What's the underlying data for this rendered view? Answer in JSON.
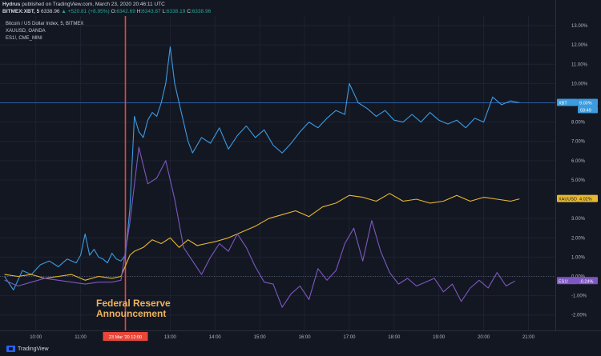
{
  "header": {
    "publisher": "Hydrus",
    "published_text": "published on TradingView.com, March 23, 2020 20:46:11 UTC",
    "symbol": "BITMEX:XBT, 5",
    "last": "6338.96",
    "change": "▲ +520.81 (+8.95%)",
    "o_label": "O:",
    "o_value": "6342.69",
    "h_label": "H:",
    "h_value": "6343.87",
    "l_label": "L:",
    "l_value": "6338.19",
    "c_label": "C:",
    "c_value": "6338.96"
  },
  "legend": [
    "Bitcoin / US Dollar Index, 5, BITMEX",
    "XAUUSD, OANDA",
    "ES1!, CME_MINI"
  ],
  "annotation": {
    "line1": "Federal Reserve",
    "line2": "Announcement",
    "marker_label": "23 Mar '20   12:00"
  },
  "footer": {
    "brand": "TradingView"
  },
  "colors": {
    "background": "#131722",
    "xbt": "#3d9be0",
    "xauusd": "#e8b830",
    "es1": "#7e57c2",
    "event": "#e8473b",
    "grid": "#1e2331"
  },
  "chart_data": {
    "type": "line",
    "x_unit": "hours",
    "xlim": [
      9.2,
      21.6
    ],
    "ylim": [
      -2.8,
      13.5
    ],
    "x_ticks": [
      {
        "x": 10,
        "label": "10:00"
      },
      {
        "x": 11,
        "label": "11:00"
      },
      {
        "x": 13,
        "label": "13:00"
      },
      {
        "x": 14,
        "label": "14:00"
      },
      {
        "x": 15,
        "label": "15:00"
      },
      {
        "x": 16,
        "label": "16:00"
      },
      {
        "x": 17,
        "label": "17:00"
      },
      {
        "x": 18,
        "label": "18:00"
      },
      {
        "x": 19,
        "label": "19:00"
      },
      {
        "x": 20,
        "label": "20:00"
      },
      {
        "x": 21,
        "label": "21:00"
      }
    ],
    "y_ticks": [
      {
        "y": 13,
        "label": "13.00%"
      },
      {
        "y": 12,
        "label": "12.00%"
      },
      {
        "y": 11,
        "label": "11.00%"
      },
      {
        "y": 10,
        "label": "10.00%"
      },
      {
        "y": 8,
        "label": "8.00%"
      },
      {
        "y": 7,
        "label": "7.00%"
      },
      {
        "y": 6,
        "label": "6.00%"
      },
      {
        "y": 5,
        "label": "5.00%"
      },
      {
        "y": 3,
        "label": "3.00%"
      },
      {
        "y": 2,
        "label": "2.00%"
      },
      {
        "y": 1,
        "label": "1.00%"
      },
      {
        "y": 0,
        "label": "0.00%"
      },
      {
        "y": -1,
        "label": "-1.00%"
      },
      {
        "y": -2,
        "label": "-2.00%"
      }
    ],
    "event_x": 12.0,
    "series": [
      {
        "name": "XBT",
        "color": "#3d9be0",
        "end_label": "XBT",
        "end_value": "9.00%",
        "countdown": "03:49",
        "last": 9.0,
        "x": [
          9.3,
          9.5,
          9.7,
          9.9,
          10.1,
          10.3,
          10.5,
          10.7,
          10.9,
          11.0,
          11.1,
          11.2,
          11.3,
          11.4,
          11.5,
          11.6,
          11.7,
          11.8,
          11.9,
          12.0,
          12.1,
          12.2,
          12.3,
          12.4,
          12.5,
          12.6,
          12.7,
          12.8,
          12.9,
          13.0,
          13.1,
          13.2,
          13.3,
          13.4,
          13.5,
          13.7,
          13.9,
          14.1,
          14.3,
          14.5,
          14.7,
          14.9,
          15.1,
          15.3,
          15.5,
          15.7,
          15.9,
          16.1,
          16.3,
          16.5,
          16.7,
          16.9,
          17.0,
          17.2,
          17.4,
          17.6,
          17.8,
          18.0,
          18.2,
          18.4,
          18.6,
          18.8,
          19.0,
          19.2,
          19.4,
          19.6,
          19.8,
          20.0,
          20.2,
          20.4,
          20.6,
          20.8
        ],
        "y": [
          0.0,
          -0.7,
          0.3,
          0.1,
          0.6,
          0.8,
          0.5,
          0.9,
          0.7,
          1.1,
          2.2,
          1.1,
          1.4,
          1.0,
          0.9,
          0.7,
          1.2,
          0.9,
          0.8,
          1.1,
          3.5,
          8.3,
          7.5,
          7.2,
          8.1,
          8.5,
          8.3,
          9.0,
          10.0,
          11.9,
          10.0,
          9.0,
          8.0,
          7.0,
          6.4,
          7.2,
          6.9,
          7.7,
          6.6,
          7.3,
          7.8,
          7.2,
          7.6,
          6.8,
          6.4,
          6.9,
          7.5,
          8.0,
          7.7,
          8.2,
          8.6,
          8.4,
          10.0,
          9.0,
          8.7,
          8.3,
          8.6,
          8.1,
          8.0,
          8.4,
          8.0,
          8.5,
          8.1,
          7.9,
          8.1,
          7.7,
          8.2,
          8.0,
          9.3,
          8.9,
          9.1,
          9.0
        ]
      },
      {
        "name": "XAUUSD",
        "color": "#e8b830",
        "end_label": "XAUUSD",
        "end_value": "4.02%",
        "last": 4.02,
        "x": [
          9.3,
          9.6,
          9.9,
          10.2,
          10.5,
          10.8,
          11.1,
          11.4,
          11.7,
          11.9,
          12.1,
          12.2,
          12.4,
          12.6,
          12.8,
          13.0,
          13.2,
          13.4,
          13.6,
          13.8,
          14.0,
          14.3,
          14.6,
          14.9,
          15.2,
          15.5,
          15.8,
          16.1,
          16.4,
          16.7,
          17.0,
          17.3,
          17.6,
          17.9,
          18.2,
          18.5,
          18.8,
          19.1,
          19.4,
          19.7,
          20.0,
          20.3,
          20.6,
          20.8
        ],
        "y": [
          0.1,
          0.0,
          0.1,
          -0.1,
          0.0,
          0.1,
          -0.2,
          0.0,
          -0.1,
          0.0,
          1.1,
          1.3,
          1.5,
          1.9,
          1.7,
          2.0,
          1.5,
          1.9,
          1.6,
          1.7,
          1.8,
          2.0,
          2.3,
          2.6,
          3.0,
          3.2,
          3.4,
          3.1,
          3.6,
          3.8,
          4.2,
          4.1,
          3.9,
          4.3,
          3.9,
          4.0,
          3.8,
          3.9,
          4.2,
          3.9,
          4.1,
          4.0,
          3.9,
          4.02
        ]
      },
      {
        "name": "ES1!",
        "color": "#7e57c2",
        "end_label": "ES1!",
        "end_value": "-0.24%",
        "last": -0.24,
        "x": [
          9.3,
          9.6,
          9.9,
          10.2,
          10.5,
          10.8,
          11.1,
          11.4,
          11.7,
          11.9,
          12.1,
          12.3,
          12.5,
          12.7,
          12.9,
          13.1,
          13.3,
          13.5,
          13.7,
          13.9,
          14.1,
          14.3,
          14.5,
          14.7,
          14.9,
          15.1,
          15.3,
          15.5,
          15.7,
          15.9,
          16.1,
          16.3,
          16.5,
          16.7,
          16.9,
          17.1,
          17.3,
          17.5,
          17.7,
          17.9,
          18.1,
          18.3,
          18.5,
          18.7,
          18.9,
          19.1,
          19.3,
          19.5,
          19.7,
          19.9,
          20.1,
          20.3,
          20.5,
          20.7
        ],
        "y": [
          -0.2,
          -0.5,
          -0.3,
          -0.1,
          -0.2,
          -0.3,
          -0.4,
          -0.3,
          -0.3,
          -0.2,
          2.8,
          6.7,
          4.8,
          5.1,
          6.0,
          4.0,
          1.5,
          0.8,
          0.1,
          1.0,
          1.7,
          1.3,
          2.2,
          1.5,
          0.5,
          -0.3,
          -0.4,
          -1.6,
          -0.9,
          -0.5,
          -1.2,
          0.4,
          -0.2,
          0.3,
          1.7,
          2.5,
          0.8,
          2.9,
          1.3,
          0.2,
          -0.4,
          -0.1,
          -0.5,
          -0.3,
          -0.1,
          -0.8,
          -0.4,
          -1.3,
          -0.6,
          -0.2,
          -0.6,
          0.2,
          -0.5,
          -0.24
        ]
      }
    ]
  }
}
